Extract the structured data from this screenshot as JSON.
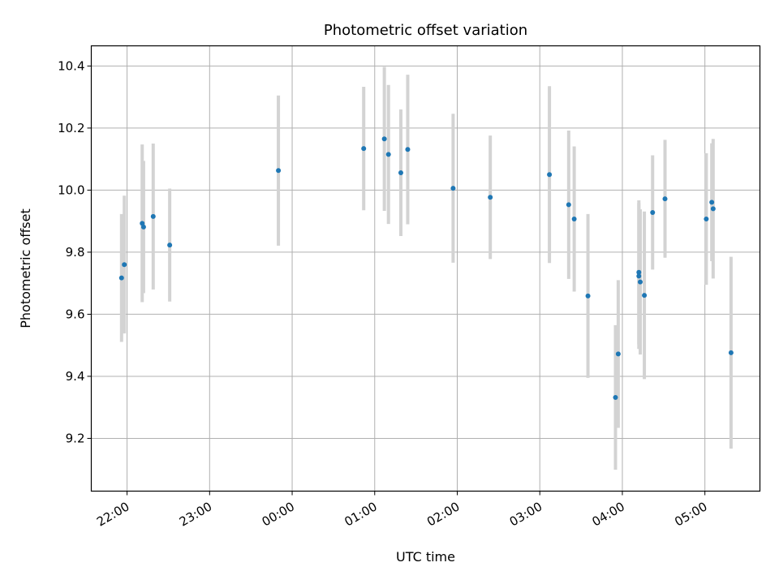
{
  "chart_data": {
    "type": "scatter",
    "title": "Photometric offset variation",
    "xlabel": "UTC time",
    "ylabel": "Photometric offset",
    "x_ticks": [
      "22:00",
      "23:00",
      "00:00",
      "01:00",
      "02:00",
      "03:00",
      "04:00",
      "05:00"
    ],
    "y_ticks": [
      "9.2",
      "9.4",
      "9.6",
      "9.8",
      "10.0",
      "10.2",
      "10.4"
    ],
    "xlim": [
      "21:34",
      "05:40"
    ],
    "ylim": [
      9.03,
      10.465
    ],
    "grid": true,
    "series": [
      {
        "marker_color": "#1f77b4",
        "error_bar_color": "#d3d3d3",
        "points": [
          {
            "x": "21:56",
            "y": 9.717,
            "err": 0.206
          },
          {
            "x": "21:58",
            "y": 9.76,
            "err": 0.222
          },
          {
            "x": "22:11",
            "y": 9.893,
            "err": 0.254
          },
          {
            "x": "22:12",
            "y": 9.881,
            "err": 0.213
          },
          {
            "x": "22:19",
            "y": 9.915,
            "err": 0.235
          },
          {
            "x": "22:31",
            "y": 9.823,
            "err": 0.182
          },
          {
            "x": "23:50",
            "y": 10.063,
            "err": 0.242
          },
          {
            "x": "00:52",
            "y": 10.134,
            "err": 0.199
          },
          {
            "x": "01:07",
            "y": 10.165,
            "err": 0.232
          },
          {
            "x": "01:10",
            "y": 10.115,
            "err": 0.224
          },
          {
            "x": "01:19",
            "y": 10.056,
            "err": 0.204
          },
          {
            "x": "01:24",
            "y": 10.131,
            "err": 0.241
          },
          {
            "x": "01:57",
            "y": 10.006,
            "err": 0.24
          },
          {
            "x": "02:24",
            "y": 9.977,
            "err": 0.199
          },
          {
            "x": "03:07",
            "y": 10.05,
            "err": 0.285
          },
          {
            "x": "03:21",
            "y": 9.953,
            "err": 0.239
          },
          {
            "x": "03:25",
            "y": 9.907,
            "err": 0.234
          },
          {
            "x": "03:35",
            "y": 9.659,
            "err": 0.264
          },
          {
            "x": "03:55",
            "y": 9.332,
            "err": 0.233
          },
          {
            "x": "03:57",
            "y": 9.472,
            "err": 0.238
          },
          {
            "x": "04:12",
            "y": 9.735,
            "err": 0.232
          },
          {
            "x": "04:12",
            "y": 9.723,
            "err": 0.235
          },
          {
            "x": "04:13",
            "y": 9.704,
            "err": 0.234
          },
          {
            "x": "04:16",
            "y": 9.661,
            "err": 0.27
          },
          {
            "x": "04:22",
            "y": 9.928,
            "err": 0.184
          },
          {
            "x": "04:31",
            "y": 9.972,
            "err": 0.19
          },
          {
            "x": "05:01",
            "y": 9.907,
            "err": 0.212
          },
          {
            "x": "05:05",
            "y": 9.961,
            "err": 0.19
          },
          {
            "x": "05:06",
            "y": 9.94,
            "err": 0.225
          },
          {
            "x": "05:19",
            "y": 9.476,
            "err": 0.309
          }
        ]
      }
    ]
  }
}
